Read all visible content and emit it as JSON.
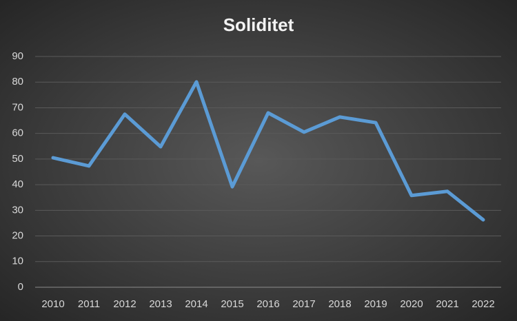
{
  "chart_data": {
    "type": "line",
    "title": "Soliditet",
    "categories": [
      "2010",
      "2011",
      "2012",
      "2013",
      "2014",
      "2015",
      "2016",
      "2017",
      "2018",
      "2019",
      "2020",
      "2021",
      "2022"
    ],
    "series": [
      {
        "name": "Soliditet",
        "color": "#5b9bd5",
        "values": [
          50.5,
          47.3,
          67.5,
          54.8,
          80.1,
          39.2,
          68,
          60.5,
          66.4,
          64.2,
          35.8,
          37.4,
          26.3
        ]
      }
    ],
    "ylim": [
      0,
      90
    ],
    "yticks": [
      0,
      10,
      20,
      30,
      40,
      50,
      60,
      70,
      80,
      90
    ],
    "grid": true,
    "legend": false
  }
}
